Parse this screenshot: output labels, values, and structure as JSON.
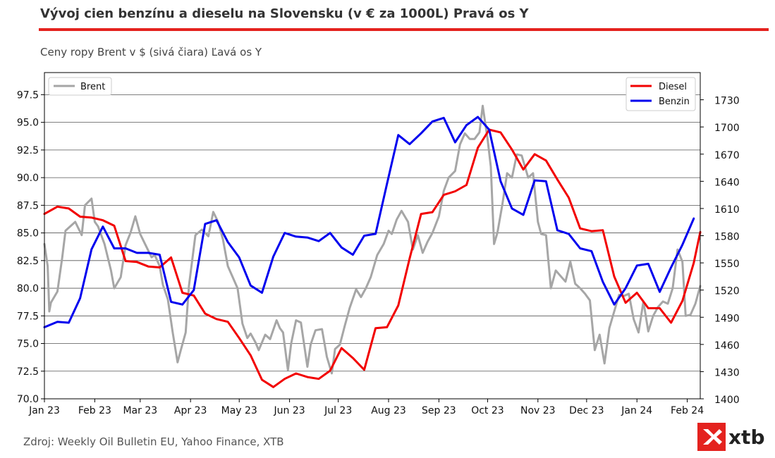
{
  "title": "Vývoj cien benzínu a dieselu na Slovensku (v € za 1000L) Pravá os Y",
  "subtitle": "Ceny ropy Brent v $ (sivá čiara) Ľavá os Y",
  "source": "Zdroj: Weekly Oil Bulletin EU, Yahoo Finance, XTB",
  "logo_text": "xtb",
  "colors": {
    "accent": "#e4221e",
    "brent": "#a6a6a6",
    "diesel": "#f20000",
    "benzin": "#0000ee"
  },
  "chart_data": {
    "type": "line",
    "title": "Vývoj cien benzínu a dieselu na Slovensku (v € za 1000L) Pravá os Y",
    "subtitle": "Ceny ropy Brent v $ (sivá čiara) Ľavá os Y",
    "x_ticks": [
      "Jan 23",
      "Feb 23",
      "Mar 23",
      "Apr 23",
      "May 23",
      "Jun 23",
      "Jul 23",
      "Aug 23",
      "Sep 23",
      "Oct 23",
      "Nov 23",
      "Dec 23",
      "Jan 24",
      "Feb 24"
    ],
    "xlim": [
      "2023-01-01",
      "2024-02-09"
    ],
    "left_axis": {
      "ylim": [
        70,
        99.5
      ],
      "ticks": [
        "70.0",
        "72.5",
        "75.0",
        "77.5",
        "80.0",
        "82.5",
        "85.0",
        "87.5",
        "90.0",
        "92.5",
        "95.0",
        "97.5"
      ]
    },
    "right_axis": {
      "ylim": [
        1400,
        1760
      ],
      "ticks": [
        "1400",
        "1430",
        "1460",
        "1490",
        "1520",
        "1550",
        "1580",
        "1610",
        "1640",
        "1670",
        "1700",
        "1730"
      ]
    },
    "grid": "horizontal",
    "legend_left": {
      "placement": "top-left",
      "entries": [
        "Brent"
      ]
    },
    "legend_right": {
      "placement": "top-right",
      "entries": [
        "Diesel",
        "Benzin"
      ]
    },
    "series": [
      {
        "name": "Brent",
        "axis": "left",
        "color": "#a6a6a6",
        "points": [
          [
            "2023-01-01",
            84.0
          ],
          [
            "2023-01-03",
            82.0
          ],
          [
            "2023-01-04",
            77.9
          ],
          [
            "2023-01-05",
            78.7
          ],
          [
            "2023-01-09",
            79.7
          ],
          [
            "2023-01-12",
            82.8
          ],
          [
            "2023-01-14",
            85.2
          ],
          [
            "2023-01-20",
            86.0
          ],
          [
            "2023-01-24",
            84.8
          ],
          [
            "2023-01-26",
            87.5
          ],
          [
            "2023-01-30",
            88.1
          ],
          [
            "2023-02-01",
            86.0
          ],
          [
            "2023-02-03",
            85.6
          ],
          [
            "2023-02-07",
            84.0
          ],
          [
            "2023-02-11",
            81.6
          ],
          [
            "2023-02-13",
            80.0
          ],
          [
            "2023-02-17",
            81.0
          ],
          [
            "2023-02-20",
            83.9
          ],
          [
            "2023-02-23",
            85.0
          ],
          [
            "2023-02-26",
            86.5
          ],
          [
            "2023-03-01",
            84.9
          ],
          [
            "2023-03-04",
            84.0
          ],
          [
            "2023-03-08",
            82.8
          ],
          [
            "2023-03-10",
            83.0
          ],
          [
            "2023-03-13",
            82.0
          ],
          [
            "2023-03-15",
            80.3
          ],
          [
            "2023-03-18",
            79.0
          ],
          [
            "2023-03-21",
            76.0
          ],
          [
            "2023-03-24",
            73.3
          ],
          [
            "2023-03-26",
            74.4
          ],
          [
            "2023-03-29",
            76.0
          ],
          [
            "2023-03-31",
            80.2
          ],
          [
            "2023-04-04",
            84.8
          ],
          [
            "2023-04-08",
            85.3
          ],
          [
            "2023-04-12",
            84.7
          ],
          [
            "2023-04-15",
            86.9
          ],
          [
            "2023-04-18",
            86.0
          ],
          [
            "2023-04-21",
            84.4
          ],
          [
            "2023-04-24",
            82.0
          ],
          [
            "2023-04-27",
            81.0
          ],
          [
            "2023-04-30",
            80.0
          ],
          [
            "2023-05-03",
            76.8
          ],
          [
            "2023-05-06",
            75.5
          ],
          [
            "2023-05-08",
            75.9
          ],
          [
            "2023-05-11",
            75.1
          ],
          [
            "2023-05-13",
            74.4
          ],
          [
            "2023-05-17",
            75.8
          ],
          [
            "2023-05-20",
            75.4
          ],
          [
            "2023-05-24",
            77.1
          ],
          [
            "2023-05-26",
            76.4
          ],
          [
            "2023-05-28",
            76.0
          ],
          [
            "2023-05-31",
            72.6
          ],
          [
            "2023-06-02",
            75.0
          ],
          [
            "2023-06-05",
            77.1
          ],
          [
            "2023-06-08",
            76.9
          ],
          [
            "2023-06-12",
            72.9
          ],
          [
            "2023-06-14",
            74.9
          ],
          [
            "2023-06-17",
            76.2
          ],
          [
            "2023-06-21",
            76.3
          ],
          [
            "2023-06-24",
            73.8
          ],
          [
            "2023-06-27",
            72.3
          ],
          [
            "2023-06-29",
            74.5
          ],
          [
            "2023-07-02",
            74.9
          ],
          [
            "2023-07-05",
            76.6
          ],
          [
            "2023-07-08",
            78.2
          ],
          [
            "2023-07-12",
            79.9
          ],
          [
            "2023-07-15",
            79.2
          ],
          [
            "2023-07-18",
            80.0
          ],
          [
            "2023-07-21",
            81.0
          ],
          [
            "2023-07-25",
            83.0
          ],
          [
            "2023-07-29",
            84.0
          ],
          [
            "2023-08-01",
            85.2
          ],
          [
            "2023-08-03",
            84.9
          ],
          [
            "2023-08-06",
            86.2
          ],
          [
            "2023-08-09",
            87.0
          ],
          [
            "2023-08-13",
            86.0
          ],
          [
            "2023-08-16",
            83.5
          ],
          [
            "2023-08-19",
            84.8
          ],
          [
            "2023-08-22",
            83.2
          ],
          [
            "2023-08-25",
            84.2
          ],
          [
            "2023-08-28",
            85.0
          ],
          [
            "2023-09-01",
            86.5
          ],
          [
            "2023-09-04",
            88.8
          ],
          [
            "2023-09-07",
            90.0
          ],
          [
            "2023-09-11",
            90.6
          ],
          [
            "2023-09-14",
            93.0
          ],
          [
            "2023-09-17",
            94.0
          ],
          [
            "2023-09-20",
            93.5
          ],
          [
            "2023-09-23",
            93.5
          ],
          [
            "2023-09-26",
            94.1
          ],
          [
            "2023-09-28",
            96.5
          ],
          [
            "2023-10-01",
            93.5
          ],
          [
            "2023-10-03",
            91.0
          ],
          [
            "2023-10-05",
            84.0
          ],
          [
            "2023-10-07",
            85.0
          ],
          [
            "2023-10-10",
            87.5
          ],
          [
            "2023-10-13",
            90.4
          ],
          [
            "2023-10-16",
            90.0
          ],
          [
            "2023-10-19",
            92.1
          ],
          [
            "2023-10-22",
            92.0
          ],
          [
            "2023-10-26",
            90.0
          ],
          [
            "2023-10-29",
            90.4
          ],
          [
            "2023-11-01",
            86.0
          ],
          [
            "2023-11-03",
            84.9
          ],
          [
            "2023-11-06",
            84.8
          ],
          [
            "2023-11-09",
            80.0
          ],
          [
            "2023-11-12",
            81.6
          ],
          [
            "2023-11-15",
            81.1
          ],
          [
            "2023-11-18",
            80.6
          ],
          [
            "2023-11-21",
            82.4
          ],
          [
            "2023-11-24",
            80.4
          ],
          [
            "2023-11-27",
            80.0
          ],
          [
            "2023-11-30",
            79.5
          ],
          [
            "2023-12-03",
            78.9
          ],
          [
            "2023-12-06",
            74.4
          ],
          [
            "2023-12-09",
            75.8
          ],
          [
            "2023-12-12",
            73.2
          ],
          [
            "2023-12-15",
            76.4
          ],
          [
            "2023-12-18",
            77.9
          ],
          [
            "2023-12-21",
            79.4
          ],
          [
            "2023-12-24",
            79.3
          ],
          [
            "2023-12-27",
            79.5
          ],
          [
            "2023-12-30",
            77.2
          ],
          [
            "2024-01-02",
            76.0
          ],
          [
            "2024-01-05",
            78.8
          ],
          [
            "2024-01-08",
            76.1
          ],
          [
            "2024-01-11",
            77.5
          ],
          [
            "2024-01-14",
            78.3
          ],
          [
            "2024-01-17",
            78.8
          ],
          [
            "2024-01-20",
            78.6
          ],
          [
            "2024-01-23",
            80.0
          ],
          [
            "2024-01-26",
            83.5
          ],
          [
            "2024-01-29",
            82.4
          ],
          [
            "2024-01-31",
            77.5
          ],
          [
            "2024-02-03",
            77.6
          ],
          [
            "2024-02-06",
            78.6
          ],
          [
            "2024-02-09",
            80.2
          ]
        ]
      },
      {
        "name": "Diesel",
        "axis": "right",
        "color": "#f20000",
        "points": [
          [
            "2023-01-01",
            1604
          ],
          [
            "2023-01-09",
            1612
          ],
          [
            "2023-01-16",
            1610
          ],
          [
            "2023-01-23",
            1601
          ],
          [
            "2023-01-30",
            1600
          ],
          [
            "2023-02-06",
            1597
          ],
          [
            "2023-02-13",
            1591
          ],
          [
            "2023-02-20",
            1552
          ],
          [
            "2023-02-27",
            1551
          ],
          [
            "2023-03-06",
            1546
          ],
          [
            "2023-03-13",
            1545
          ],
          [
            "2023-03-20",
            1556
          ],
          [
            "2023-03-27",
            1517
          ],
          [
            "2023-04-03",
            1514
          ],
          [
            "2023-04-10",
            1494
          ],
          [
            "2023-04-17",
            1488
          ],
          [
            "2023-04-24",
            1485
          ],
          [
            "2023-05-01",
            1467
          ],
          [
            "2023-05-08",
            1448
          ],
          [
            "2023-05-15",
            1421
          ],
          [
            "2023-05-22",
            1413
          ],
          [
            "2023-05-29",
            1422
          ],
          [
            "2023-06-05",
            1428
          ],
          [
            "2023-06-12",
            1424
          ],
          [
            "2023-06-19",
            1422
          ],
          [
            "2023-06-26",
            1431
          ],
          [
            "2023-07-03",
            1456
          ],
          [
            "2023-07-10",
            1445
          ],
          [
            "2023-07-17",
            1432
          ],
          [
            "2023-07-24",
            1478
          ],
          [
            "2023-07-31",
            1479
          ],
          [
            "2023-08-07",
            1503
          ],
          [
            "2023-08-14",
            1555
          ],
          [
            "2023-08-21",
            1604
          ],
          [
            "2023-08-28",
            1606
          ],
          [
            "2023-09-04",
            1625
          ],
          [
            "2023-09-11",
            1629
          ],
          [
            "2023-09-18",
            1636
          ],
          [
            "2023-09-25",
            1677
          ],
          [
            "2023-10-02",
            1697
          ],
          [
            "2023-10-09",
            1694
          ],
          [
            "2023-10-16",
            1675
          ],
          [
            "2023-10-23",
            1653
          ],
          [
            "2023-10-30",
            1670
          ],
          [
            "2023-11-06",
            1663
          ],
          [
            "2023-11-13",
            1642
          ],
          [
            "2023-11-20",
            1622
          ],
          [
            "2023-11-27",
            1588
          ],
          [
            "2023-12-04",
            1585
          ],
          [
            "2023-12-11",
            1586
          ],
          [
            "2023-12-18",
            1535
          ],
          [
            "2023-12-25",
            1506
          ],
          [
            "2024-01-01",
            1517
          ],
          [
            "2024-01-08",
            1500
          ],
          [
            "2024-01-15",
            1500
          ],
          [
            "2024-01-22",
            1484
          ],
          [
            "2024-01-29",
            1508
          ],
          [
            "2024-02-05",
            1550
          ],
          [
            "2024-02-09",
            1584
          ]
        ]
      },
      {
        "name": "Benzin",
        "axis": "right",
        "color": "#0000ee",
        "points": [
          [
            "2023-01-01",
            1479
          ],
          [
            "2023-01-09",
            1485
          ],
          [
            "2023-01-16",
            1484
          ],
          [
            "2023-01-23",
            1511
          ],
          [
            "2023-01-30",
            1565
          ],
          [
            "2023-02-06",
            1590
          ],
          [
            "2023-02-13",
            1566
          ],
          [
            "2023-02-20",
            1566
          ],
          [
            "2023-02-27",
            1561
          ],
          [
            "2023-03-06",
            1561
          ],
          [
            "2023-03-13",
            1559
          ],
          [
            "2023-03-20",
            1507
          ],
          [
            "2023-03-27",
            1504
          ],
          [
            "2023-04-03",
            1520
          ],
          [
            "2023-04-10",
            1593
          ],
          [
            "2023-04-17",
            1597
          ],
          [
            "2023-04-24",
            1573
          ],
          [
            "2023-05-01",
            1556
          ],
          [
            "2023-05-08",
            1525
          ],
          [
            "2023-05-15",
            1517
          ],
          [
            "2023-05-22",
            1557
          ],
          [
            "2023-05-29",
            1583
          ],
          [
            "2023-06-05",
            1579
          ],
          [
            "2023-06-12",
            1578
          ],
          [
            "2023-06-19",
            1574
          ],
          [
            "2023-06-26",
            1583
          ],
          [
            "2023-07-03",
            1567
          ],
          [
            "2023-07-10",
            1559
          ],
          [
            "2023-07-17",
            1580
          ],
          [
            "2023-07-24",
            1582
          ],
          [
            "2023-07-31",
            1637
          ],
          [
            "2023-08-07",
            1691
          ],
          [
            "2023-08-14",
            1681
          ],
          [
            "2023-08-21",
            1693
          ],
          [
            "2023-08-28",
            1706
          ],
          [
            "2023-09-04",
            1710
          ],
          [
            "2023-09-11",
            1683
          ],
          [
            "2023-09-18",
            1702
          ],
          [
            "2023-09-25",
            1711
          ],
          [
            "2023-10-02",
            1697
          ],
          [
            "2023-10-09",
            1640
          ],
          [
            "2023-10-16",
            1610
          ],
          [
            "2023-10-23",
            1603
          ],
          [
            "2023-10-30",
            1641
          ],
          [
            "2023-11-06",
            1640
          ],
          [
            "2023-11-13",
            1586
          ],
          [
            "2023-11-20",
            1582
          ],
          [
            "2023-11-27",
            1566
          ],
          [
            "2023-12-04",
            1563
          ],
          [
            "2023-12-11",
            1529
          ],
          [
            "2023-12-18",
            1504
          ],
          [
            "2023-12-25",
            1522
          ],
          [
            "2024-01-01",
            1547
          ],
          [
            "2024-01-08",
            1549
          ],
          [
            "2024-01-15",
            1518
          ],
          [
            "2024-01-22",
            1545
          ],
          [
            "2024-01-29",
            1570
          ],
          [
            "2024-02-05",
            1599
          ]
        ]
      }
    ]
  }
}
